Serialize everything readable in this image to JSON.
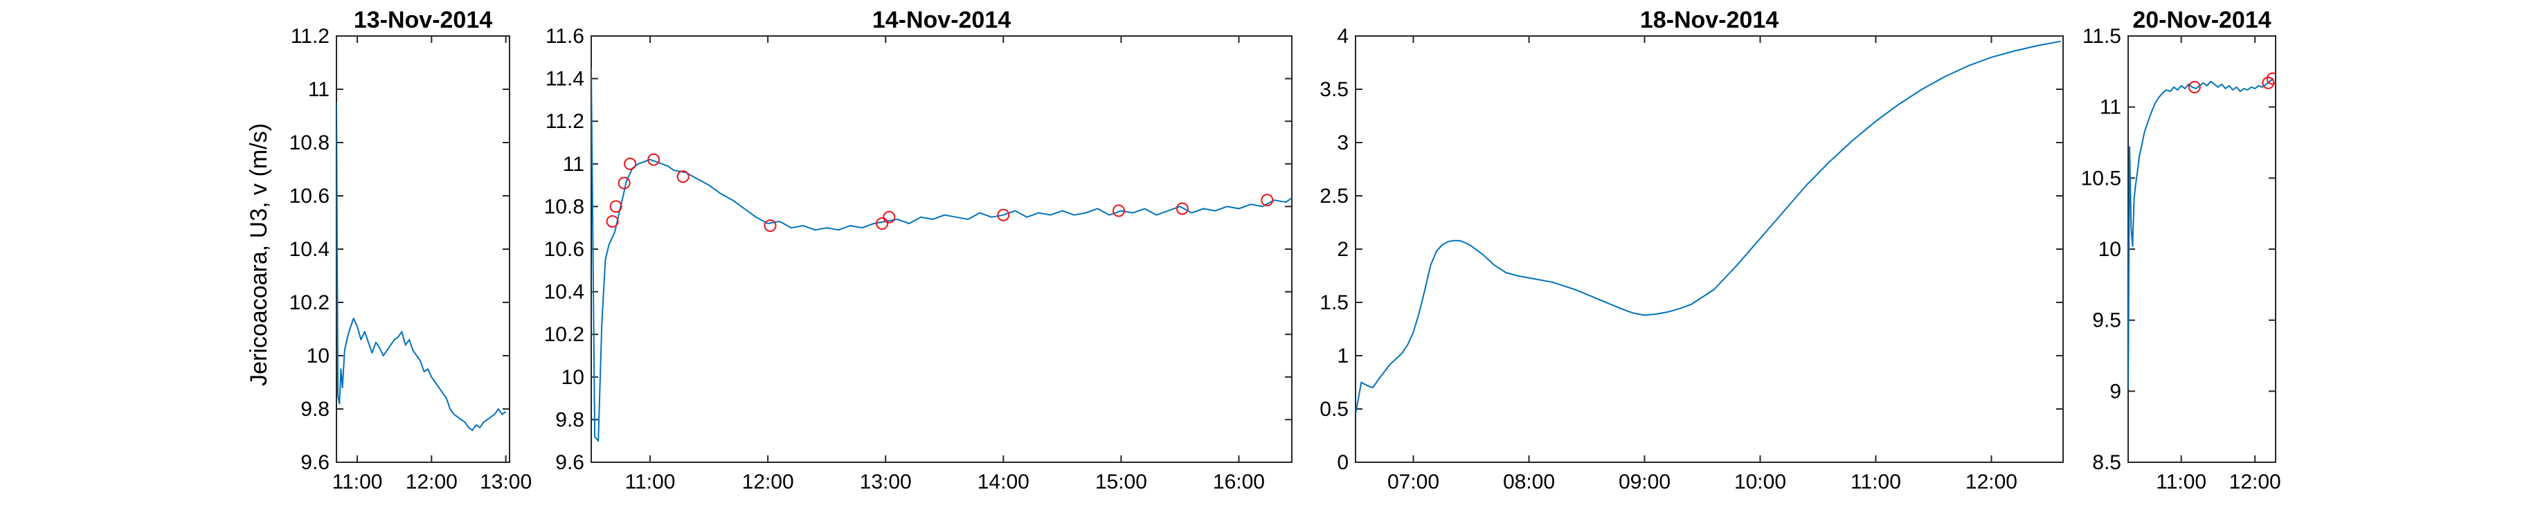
{
  "figure": {
    "ylabel": "Jericoacoara, U3, v (m/s)",
    "line_color": "#0072BD",
    "marker_color": "#E8141B",
    "axis_color": "#262626"
  },
  "chart_data": [
    {
      "type": "line",
      "title": "13-Nov-2014",
      "xlim": [
        10.72,
        13.05
      ],
      "ylim": [
        9.6,
        11.2
      ],
      "xticks": [
        11,
        12,
        13
      ],
      "xticklabels": [
        "11:00",
        "12:00",
        "13:00"
      ],
      "yticks": [
        9.6,
        9.8,
        10.0,
        10.2,
        10.4,
        10.6,
        10.8,
        11.0,
        11.2
      ],
      "yticklabels": [
        "9.6",
        "9.8",
        "10",
        "10.2",
        "10.4",
        "10.6",
        "10.8",
        "11",
        "11.2"
      ],
      "series": [
        {
          "x": [
            10.72,
            10.74,
            10.76,
            10.78,
            10.8,
            10.83,
            10.86,
            10.9,
            10.95,
            11.0,
            11.05,
            11.1,
            11.15,
            11.2,
            11.25,
            11.3,
            11.35,
            11.4,
            11.45,
            11.5,
            11.55,
            11.6,
            11.65,
            11.7,
            11.75,
            11.8,
            11.85,
            11.9,
            11.95,
            12.0,
            12.05,
            12.1,
            12.15,
            12.2,
            12.25,
            12.3,
            12.35,
            12.4,
            12.45,
            12.5,
            12.55,
            12.6,
            12.65,
            12.7,
            12.75,
            12.8,
            12.85,
            12.9,
            12.95,
            13.0
          ],
          "y": [
            10.95,
            9.85,
            9.82,
            9.95,
            9.88,
            10.02,
            10.06,
            10.1,
            10.14,
            10.11,
            10.06,
            10.09,
            10.05,
            10.01,
            10.05,
            10.03,
            10.0,
            10.02,
            10.04,
            10.06,
            10.07,
            10.09,
            10.04,
            10.06,
            10.02,
            10.0,
            9.98,
            9.94,
            9.95,
            9.92,
            9.9,
            9.88,
            9.86,
            9.84,
            9.8,
            9.78,
            9.77,
            9.76,
            9.75,
            9.73,
            9.72,
            9.74,
            9.73,
            9.75,
            9.76,
            9.77,
            9.78,
            9.8,
            9.78,
            9.79
          ]
        }
      ]
    },
    {
      "type": "line",
      "title": "14-Nov-2014",
      "xlim": [
        10.5,
        16.45
      ],
      "ylim": [
        9.6,
        11.6
      ],
      "xticks": [
        11,
        12,
        13,
        14,
        15,
        16
      ],
      "xticklabels": [
        "11:00",
        "12:00",
        "13:00",
        "14:00",
        "15:00",
        "16:00"
      ],
      "yticks": [
        9.6,
        9.8,
        10.0,
        10.2,
        10.4,
        10.6,
        10.8,
        11.0,
        11.2,
        11.4,
        11.6
      ],
      "yticklabels": [
        "9.6",
        "9.8",
        "10",
        "10.2",
        "10.4",
        "10.6",
        "10.8",
        "11",
        "11.2",
        "11.4",
        "11.6"
      ],
      "series": [
        {
          "x": [
            10.5,
            10.53,
            10.56,
            10.59,
            10.62,
            10.65,
            10.7,
            10.75,
            10.8,
            10.85,
            10.9,
            10.95,
            11.0,
            11.05,
            11.1,
            11.15,
            11.2,
            11.3,
            11.4,
            11.5,
            11.6,
            11.7,
            11.8,
            11.9,
            12.0,
            12.1,
            12.2,
            12.3,
            12.4,
            12.5,
            12.6,
            12.7,
            12.8,
            12.9,
            13.0,
            13.1,
            13.2,
            13.3,
            13.4,
            13.5,
            13.6,
            13.7,
            13.8,
            13.9,
            14.0,
            14.1,
            14.2,
            14.3,
            14.4,
            14.5,
            14.6,
            14.7,
            14.8,
            14.9,
            15.0,
            15.1,
            15.2,
            15.3,
            15.4,
            15.5,
            15.6,
            15.7,
            15.8,
            15.9,
            16.0,
            16.1,
            16.2,
            16.3,
            16.4,
            16.45
          ],
          "y": [
            11.45,
            9.72,
            9.7,
            10.25,
            10.55,
            10.62,
            10.68,
            10.8,
            10.92,
            10.98,
            11.0,
            11.01,
            11.02,
            11.01,
            11.0,
            10.99,
            10.97,
            10.96,
            10.93,
            10.9,
            10.86,
            10.83,
            10.79,
            10.75,
            10.72,
            10.73,
            10.7,
            10.71,
            10.69,
            10.7,
            10.69,
            10.71,
            10.7,
            10.72,
            10.73,
            10.74,
            10.72,
            10.75,
            10.74,
            10.76,
            10.75,
            10.74,
            10.77,
            10.75,
            10.76,
            10.78,
            10.75,
            10.77,
            10.76,
            10.78,
            10.76,
            10.77,
            10.79,
            10.76,
            10.78,
            10.77,
            10.79,
            10.76,
            10.78,
            10.8,
            10.77,
            10.79,
            10.78,
            10.8,
            10.79,
            10.81,
            10.8,
            10.83,
            10.82,
            10.84
          ]
        }
      ],
      "markers": {
        "x": [
          10.68,
          10.71,
          10.78,
          10.83,
          11.03,
          11.28,
          12.02,
          12.97,
          13.03,
          14.0,
          14.98,
          15.52,
          16.24
        ],
        "y": [
          10.73,
          10.8,
          10.91,
          11.0,
          11.02,
          10.94,
          10.71,
          10.72,
          10.75,
          10.76,
          10.78,
          10.79,
          10.83
        ]
      }
    },
    {
      "type": "line",
      "title": "18-Nov-2014",
      "xlim": [
        6.5,
        12.62
      ],
      "ylim": [
        0,
        4
      ],
      "xticks": [
        7,
        8,
        9,
        10,
        11,
        12
      ],
      "xticklabels": [
        "07:00",
        "08:00",
        "09:00",
        "10:00",
        "11:00",
        "12:00"
      ],
      "yticks": [
        0,
        0.5,
        1,
        1.5,
        2,
        2.5,
        3,
        3.5,
        4
      ],
      "yticklabels": [
        "0",
        "0.5",
        "1",
        "1.5",
        "2",
        "2.5",
        "3",
        "3.5",
        "4"
      ],
      "series": [
        {
          "x": [
            6.5,
            6.55,
            6.6,
            6.65,
            6.7,
            6.75,
            6.8,
            6.85,
            6.9,
            6.95,
            7.0,
            7.05,
            7.1,
            7.15,
            7.2,
            7.25,
            7.3,
            7.35,
            7.4,
            7.45,
            7.5,
            7.6,
            7.7,
            7.8,
            7.9,
            8.0,
            8.2,
            8.4,
            8.6,
            8.8,
            8.9,
            9.0,
            9.1,
            9.2,
            9.3,
            9.4,
            9.6,
            9.8,
            10.0,
            10.2,
            10.4,
            10.6,
            10.8,
            11.0,
            11.2,
            11.4,
            11.6,
            11.8,
            12.0,
            12.2,
            12.4,
            12.6
          ],
          "y": [
            0.45,
            0.75,
            0.72,
            0.7,
            0.78,
            0.85,
            0.92,
            0.97,
            1.02,
            1.1,
            1.22,
            1.4,
            1.62,
            1.85,
            1.98,
            2.04,
            2.07,
            2.08,
            2.08,
            2.06,
            2.03,
            1.95,
            1.85,
            1.78,
            1.75,
            1.73,
            1.69,
            1.62,
            1.53,
            1.44,
            1.4,
            1.38,
            1.39,
            1.41,
            1.44,
            1.48,
            1.62,
            1.85,
            2.1,
            2.35,
            2.6,
            2.82,
            3.02,
            3.2,
            3.36,
            3.5,
            3.62,
            3.72,
            3.8,
            3.86,
            3.91,
            3.95
          ]
        }
      ]
    },
    {
      "type": "line",
      "title": "20-Nov-2014",
      "xlim": [
        10.28,
        12.28
      ],
      "ylim": [
        8.5,
        11.5
      ],
      "xticks": [
        11,
        12
      ],
      "xticklabels": [
        "11:00",
        "12:00"
      ],
      "yticks": [
        8.5,
        9.0,
        9.5,
        10.0,
        10.5,
        11.0,
        11.5
      ],
      "yticklabels": [
        "8.5",
        "9",
        "9.5",
        "10",
        "10.5",
        "11",
        "11.5"
      ],
      "series": [
        {
          "x": [
            10.28,
            10.3,
            10.32,
            10.34,
            10.36,
            10.38,
            10.4,
            10.43,
            10.46,
            10.5,
            10.55,
            10.6,
            10.65,
            10.7,
            10.75,
            10.8,
            10.85,
            10.9,
            10.95,
            11.0,
            11.05,
            11.1,
            11.15,
            11.2,
            11.25,
            11.3,
            11.35,
            11.4,
            11.45,
            11.5,
            11.55,
            11.6,
            11.65,
            11.7,
            11.75,
            11.8,
            11.85,
            11.9,
            11.95,
            12.0,
            12.05,
            12.1,
            12.15,
            12.2,
            12.25
          ],
          "y": [
            9.02,
            10.72,
            10.15,
            10.02,
            10.35,
            10.45,
            10.52,
            10.65,
            10.72,
            10.82,
            10.9,
            10.97,
            11.03,
            11.07,
            11.1,
            11.12,
            11.11,
            11.14,
            11.12,
            11.15,
            11.13,
            11.16,
            11.14,
            11.13,
            11.15,
            11.17,
            11.15,
            11.18,
            11.16,
            11.14,
            11.16,
            11.13,
            11.15,
            11.12,
            11.14,
            11.11,
            11.13,
            11.12,
            11.14,
            11.13,
            11.15,
            11.14,
            11.16,
            11.18,
            11.2
          ]
        }
      ],
      "markers": {
        "x": [
          11.18,
          12.18,
          12.24
        ],
        "y": [
          11.14,
          11.17,
          11.2
        ]
      }
    }
  ]
}
